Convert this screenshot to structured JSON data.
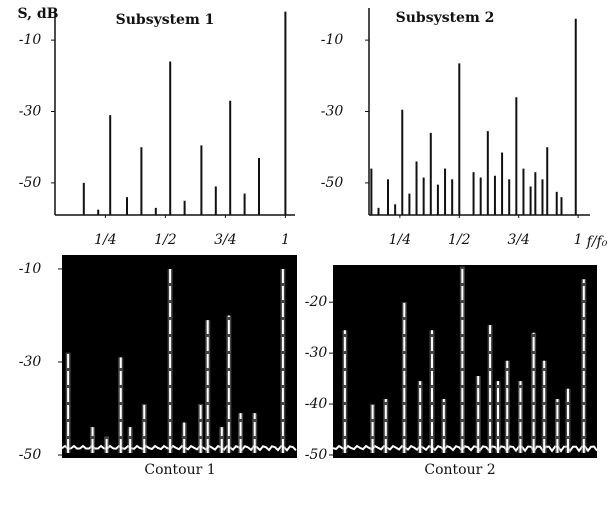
{
  "chart_data": [
    {
      "type": "stem",
      "title": "Subsystem 1",
      "ylabel": "S, dB",
      "x": [
        0.16,
        0.22,
        0.27,
        0.34,
        0.4,
        0.46,
        0.52,
        0.58,
        0.65,
        0.71,
        0.77,
        0.83,
        0.89,
        1.0
      ],
      "values": [
        -50,
        -57.5,
        -31,
        -54,
        -40,
        -57,
        -16,
        -55,
        -39.5,
        -51,
        -27,
        -53,
        -43,
        -2
      ],
      "xlim": [
        0.04,
        1.04
      ],
      "ylim": [
        -59,
        -1
      ],
      "xticks": [
        {
          "value": 0.25,
          "label": "1/4"
        },
        {
          "value": 0.5,
          "label": "1/2"
        },
        {
          "value": 0.75,
          "label": "3/4"
        },
        1
      ],
      "yticks": [
        -10,
        -30,
        -50
      ],
      "color": "#111111"
    },
    {
      "type": "stem",
      "title": "Subsystem 2",
      "xlabel": "f/f₀",
      "x": [
        0.13,
        0.16,
        0.2,
        0.23,
        0.26,
        0.29,
        0.32,
        0.35,
        0.38,
        0.41,
        0.44,
        0.47,
        0.5,
        0.56,
        0.59,
        0.62,
        0.65,
        0.68,
        0.71,
        0.74,
        0.77,
        0.8,
        0.82,
        0.85,
        0.87,
        0.91,
        0.93,
        0.99
      ],
      "values": [
        -46,
        -57,
        -49,
        -56,
        -29.5,
        -53,
        -44,
        -48.5,
        -36,
        -50.5,
        -46,
        -49,
        -16.5,
        -47,
        -48.5,
        -35.5,
        -48,
        -41.5,
        -49,
        -26,
        -46,
        -51,
        -47,
        -49,
        -40,
        -52.5,
        -54,
        -4
      ],
      "xlim": [
        0.12,
        1.05
      ],
      "ylim": [
        -59,
        -1
      ],
      "xticks": [
        {
          "value": 0.25,
          "label": "1/4"
        },
        {
          "value": 0.5,
          "label": "1/2"
        },
        {
          "value": 0.75,
          "label": "3/4"
        },
        1
      ],
      "yticks": [
        -10,
        -30,
        -50
      ],
      "color": "#111111"
    },
    {
      "type": "scope",
      "xlabel": "Contour 1",
      "x": [
        0.026,
        0.13,
        0.19,
        0.25,
        0.29,
        0.35,
        0.46,
        0.52,
        0.59,
        0.62,
        0.68,
        0.71,
        0.76,
        0.82,
        0.94
      ],
      "values": [
        -28,
        -44,
        -46,
        -29,
        -44,
        -39,
        -10,
        -43,
        -39,
        -21,
        -44,
        -20,
        -41,
        -41,
        -10
      ],
      "xlim": [
        0,
        1
      ],
      "ylim": [
        -50,
        -7
      ],
      "yticks": [
        -10,
        -30,
        -50
      ],
      "color": "#ffffff",
      "background": "#000000"
    },
    {
      "type": "scope",
      "xlabel": "Contour 2",
      "x": [
        0.045,
        0.15,
        0.2,
        0.27,
        0.33,
        0.375,
        0.42,
        0.49,
        0.55,
        0.595,
        0.625,
        0.66,
        0.71,
        0.76,
        0.8,
        0.85,
        0.89,
        0.95
      ],
      "values": [
        -25.5,
        -40,
        -39,
        -20,
        -35.5,
        -25.5,
        -39,
        -13,
        -34.5,
        -24.5,
        -35.5,
        -31.5,
        -35.5,
        -26,
        -31.5,
        -39,
        -37,
        -15.5
      ],
      "xlim": [
        0,
        1
      ],
      "ylim": [
        -50,
        -12.7
      ],
      "yticks": [
        -20,
        -30,
        -40,
        -50
      ],
      "color": "#ffffff",
      "background": "#000000"
    }
  ]
}
